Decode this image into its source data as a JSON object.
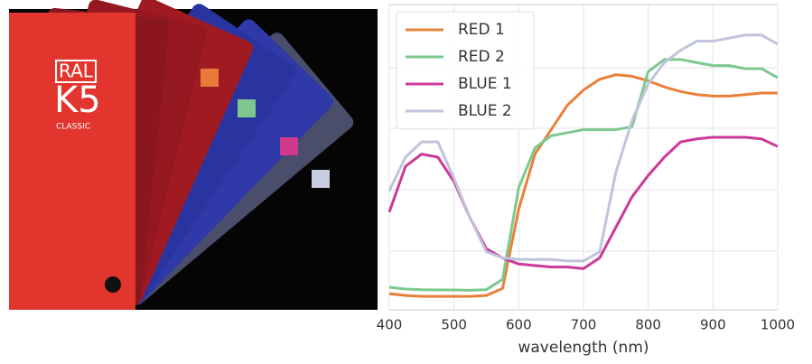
{
  "photo": {
    "brand": "RAL",
    "model": "K5",
    "line": "CLASSIC"
  },
  "chart_data": {
    "type": "line",
    "xlabel": "wavelength (nm)",
    "x": [
      400,
      425,
      450,
      475,
      500,
      525,
      550,
      575,
      600,
      625,
      650,
      675,
      700,
      725,
      750,
      775,
      800,
      825,
      850,
      875,
      900,
      925,
      950,
      975,
      1000
    ],
    "series": [
      {
        "name": "RED 1",
        "color": "#e8803a",
        "values": [
          0.053,
          0.047,
          0.044,
          0.044,
          0.044,
          0.044,
          0.047,
          0.07,
          0.33,
          0.51,
          0.59,
          0.67,
          0.72,
          0.755,
          0.77,
          0.765,
          0.75,
          0.73,
          0.715,
          0.705,
          0.7,
          0.7,
          0.705,
          0.71,
          0.71
        ]
      },
      {
        "name": "RED 2",
        "color": "#7cc98e",
        "values": [
          0.074,
          0.068,
          0.066,
          0.065,
          0.065,
          0.064,
          0.066,
          0.1,
          0.4,
          0.53,
          0.57,
          0.58,
          0.59,
          0.59,
          0.59,
          0.6,
          0.78,
          0.82,
          0.82,
          0.81,
          0.8,
          0.8,
          0.79,
          0.79,
          0.76
        ]
      },
      {
        "name": "BLUE 1",
        "color": "#cc3a98",
        "values": [
          0.32,
          0.47,
          0.51,
          0.5,
          0.42,
          0.3,
          0.2,
          0.17,
          0.15,
          0.145,
          0.14,
          0.14,
          0.135,
          0.17,
          0.27,
          0.37,
          0.44,
          0.5,
          0.55,
          0.56,
          0.565,
          0.565,
          0.565,
          0.56,
          0.535
        ]
      },
      {
        "name": "BLUE 2",
        "color": "#c0c4dc",
        "values": [
          0.39,
          0.5,
          0.55,
          0.55,
          0.43,
          0.3,
          0.19,
          0.17,
          0.165,
          0.165,
          0.165,
          0.16,
          0.16,
          0.19,
          0.45,
          0.62,
          0.74,
          0.81,
          0.85,
          0.88,
          0.88,
          0.89,
          0.9,
          0.9,
          0.87
        ]
      }
    ],
    "xlim": [
      400,
      1000
    ],
    "xticks": [
      400,
      500,
      600,
      700,
      800,
      900,
      1000
    ],
    "ylim": [
      0,
      1
    ],
    "grid": true,
    "legend": "upper left"
  }
}
